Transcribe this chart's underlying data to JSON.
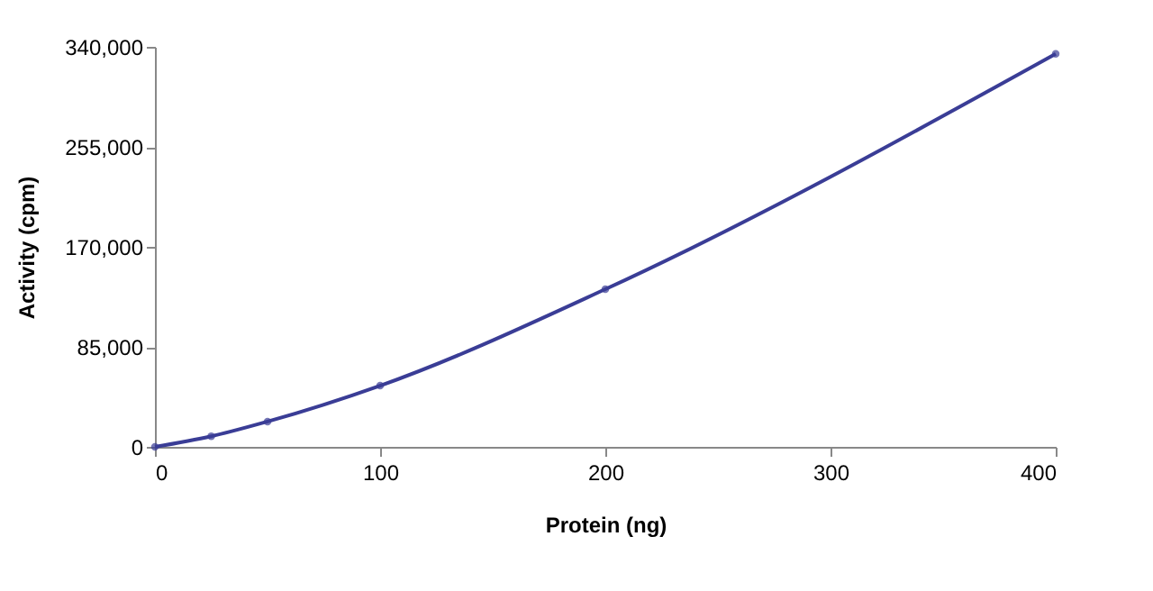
{
  "chart_data": {
    "type": "line",
    "xlabel": "Protein (ng)",
    "ylabel": "Activity (cpm)",
    "x": [
      0,
      25,
      50,
      100,
      200,
      400
    ],
    "series": [
      {
        "color": "#3a3d96",
        "values": [
          0,
          9000,
          21500,
          52000,
          134000,
          334000
        ]
      }
    ],
    "xlim": [
      0,
      400
    ],
    "xticks": [
      0,
      100,
      200,
      300,
      400
    ],
    "ylim": [
      0,
      340000
    ],
    "yticks": [
      {
        "value": 0,
        "label": "0"
      },
      {
        "value": 85000,
        "label": "85,000"
      },
      {
        "value": 170000,
        "label": "170,000"
      },
      {
        "value": 255000,
        "label": "255,000"
      },
      {
        "value": 340000,
        "label": "340,000"
      }
    ],
    "grid": false,
    "legend": false,
    "marker": "circle",
    "line_style": "solid"
  }
}
